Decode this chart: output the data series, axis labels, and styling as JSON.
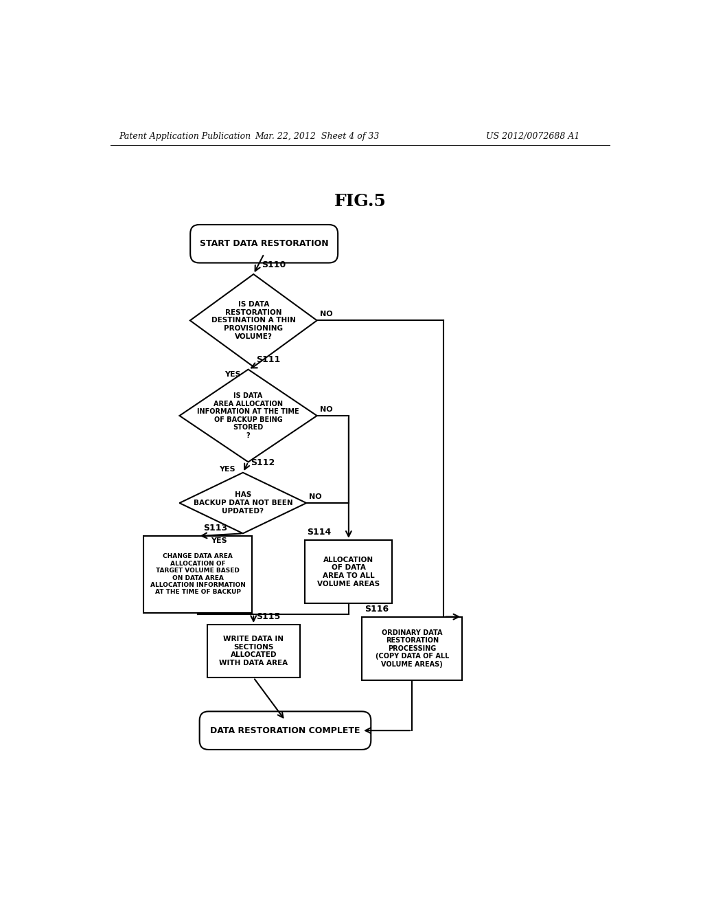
{
  "bg_color": "#ffffff",
  "header_left": "Patent Application Publication",
  "header_mid": "Mar. 22, 2012  Sheet 4 of 33",
  "header_right": "US 2012/0072688 A1",
  "fig_title": "FIG.5",
  "start_label": "START DATA RESTORATION",
  "d110_label": "IS DATA\nRESTORATION\nDESTINATION A THIN\nPROVISIONING\nVOLUME?",
  "d110_step": "S110",
  "d111_label": "IS DATA\nAREA ALLOCATION\nINFORMATION AT THE TIME\nOF BACKUP BEING\nSTORED\n?",
  "d111_step": "S111",
  "d112_label": "HAS\nBACKUP DATA NOT BEEN\nUPDATED?",
  "d112_step": "S112",
  "s113_label": "CHANGE DATA AREA\nALLOCATION OF\nTARGET VOLUME BASED\nON DATA AREA\nALLOCATION INFORMATION\nAT THE TIME OF BACKUP",
  "s113_step": "S113",
  "s114_label": "ALLOCATION\nOF DATA\nAREA TO ALL\nVOLUME AREAS",
  "s114_step": "S114",
  "s115_label": "WRITE DATA IN\nSECTIONS\nALLOCATED\nWITH DATA AREA",
  "s115_step": "S115",
  "s116_label": "ORDINARY DATA\nRESTORATION\nPROCESSING\n(COPY DATA OF ALL\nVOLUME AREAS)",
  "s116_step": "S116",
  "end_label": "DATA RESTORATION COMPLETE",
  "lw": 1.5,
  "arrow_fs": 8,
  "step_fs": 9,
  "text_fs": 7.5
}
